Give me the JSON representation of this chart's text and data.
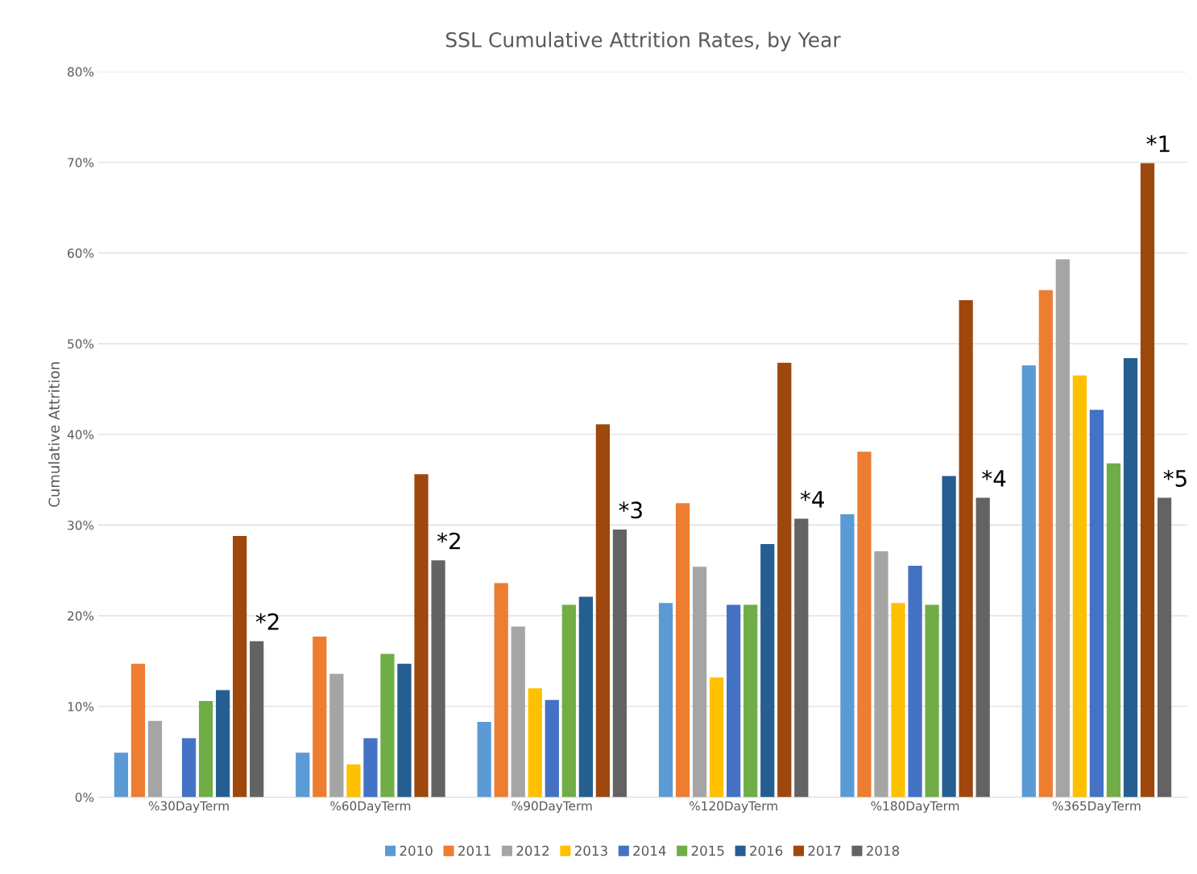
{
  "chart_data": {
    "type": "bar",
    "title": "SSL Cumulative Attrition Rates, by Year",
    "ylabel": "Cumulative Attrition",
    "categories": [
      "%30DayTerm",
      "%60DayTerm",
      "%90DayTerm",
      "%120DayTerm",
      "%180DayTerm",
      "%365DayTerm"
    ],
    "series": [
      {
        "name": "2010",
        "color": "#5b9bd5",
        "values": [
          4.9,
          4.9,
          8.3,
          21.4,
          31.2,
          47.6
        ]
      },
      {
        "name": "2011",
        "color": "#ed7d31",
        "values": [
          14.7,
          17.7,
          23.6,
          32.4,
          38.1,
          55.9
        ]
      },
      {
        "name": "2012",
        "color": "#a5a5a5",
        "values": [
          8.4,
          13.6,
          18.8,
          25.4,
          27.1,
          59.3
        ]
      },
      {
        "name": "2013",
        "color": "#ffc000",
        "values": [
          null,
          3.6,
          12.0,
          13.2,
          21.4,
          46.5
        ]
      },
      {
        "name": "2014",
        "color": "#4472c4",
        "values": [
          6.5,
          6.5,
          10.7,
          21.2,
          25.5,
          42.7
        ]
      },
      {
        "name": "2015",
        "color": "#70ad47",
        "values": [
          10.6,
          15.8,
          21.2,
          21.2,
          21.2,
          36.8
        ]
      },
      {
        "name": "2016",
        "color": "#255e91",
        "values": [
          11.8,
          14.7,
          22.1,
          27.9,
          35.4,
          48.4
        ]
      },
      {
        "name": "2017",
        "color": "#9e480e",
        "values": [
          28.8,
          35.6,
          41.1,
          47.9,
          54.8,
          69.9
        ]
      },
      {
        "name": "2018",
        "color": "#636363",
        "values": [
          17.2,
          26.1,
          29.5,
          30.7,
          33.0,
          33.0
        ]
      }
    ],
    "ylim": [
      0,
      80
    ],
    "yticks": [
      {
        "value": 0,
        "label": "0%"
      },
      {
        "value": 10,
        "label": "10%"
      },
      {
        "value": 20,
        "label": "20%"
      },
      {
        "value": 30,
        "label": "30%"
      },
      {
        "value": 40,
        "label": "40%"
      },
      {
        "value": 50,
        "label": "50%"
      },
      {
        "value": 60,
        "label": "60%"
      },
      {
        "value": 70,
        "label": "70%"
      },
      {
        "value": 80,
        "label": "80%"
      }
    ],
    "grid": "y",
    "legend": "bottom",
    "annotations": [
      "*2",
      "*2",
      "*3",
      "*4",
      "*4",
      "*1",
      "*5"
    ]
  }
}
